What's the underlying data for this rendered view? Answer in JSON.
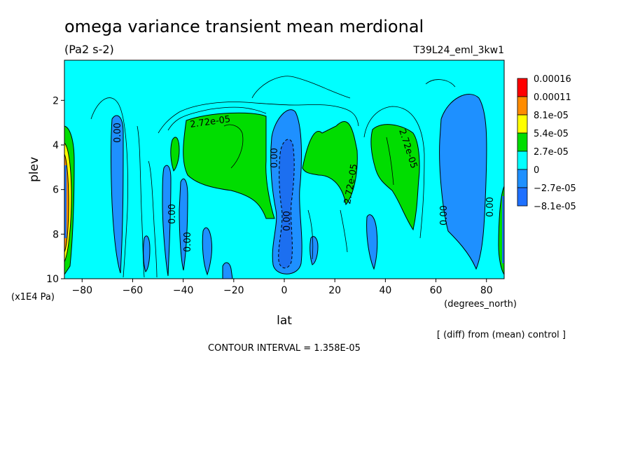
{
  "chart_data": {
    "type": "contour",
    "title": "omega variance transient mean merdional",
    "units": "(Pa2 s-2)",
    "run_label": "T39L24_eml_3kw1",
    "xlabel": "lat",
    "xunits": "(degrees_north)",
    "ylabel": "plev",
    "yunits": "(x1E4 Pa)",
    "xlim": [
      -87,
      87
    ],
    "ylim": [
      10,
      0.2
    ],
    "x_ticks": [
      -80,
      -60,
      -40,
      -20,
      0,
      20,
      40,
      60,
      80
    ],
    "y_ticks": [
      2,
      4,
      6,
      8,
      10
    ],
    "contour_interval_text": "CONTOUR INTERVAL = 1.358E-05",
    "diff_note": "[ (diff) from (mean) control ]",
    "contour_labels": [
      "2.72e-05",
      "2.72e-05",
      "2.72e-05",
      "0.00",
      "0.00",
      "0.00",
      "0.00",
      "0.00",
      "0.00",
      "0.00"
    ],
    "colorbar": {
      "labels": [
        "0.00016",
        "0.00011",
        "8.1e-05",
        "5.4e-05",
        "2.7e-05",
        "0",
        "-2.7e-05",
        "-8.1e-05"
      ],
      "colors": [
        "#ff0000",
        "#ff8c00",
        "#ffff00",
        "#00dd00",
        "#00ffff",
        "#1e90ff",
        "#1e70ff"
      ]
    },
    "colors": {
      "positive_low": "#00ffff",
      "positive_mid": "#00dd00",
      "negative": "#1e90ff",
      "strong_negative": "#1c6ff0",
      "high1": "#ffff00",
      "high2": "#ff8c00",
      "high3": "#ff0000"
    },
    "regions": [
      {
        "name": "green-south-mid",
        "level": "2.7e-05"
      },
      {
        "name": "green-north-mid",
        "level": "2.7e-05"
      },
      {
        "name": "blue-equator",
        "level": "-2.7e-05"
      },
      {
        "name": "blue-north-60-85",
        "level": "-2.7e-05"
      }
    ]
  }
}
